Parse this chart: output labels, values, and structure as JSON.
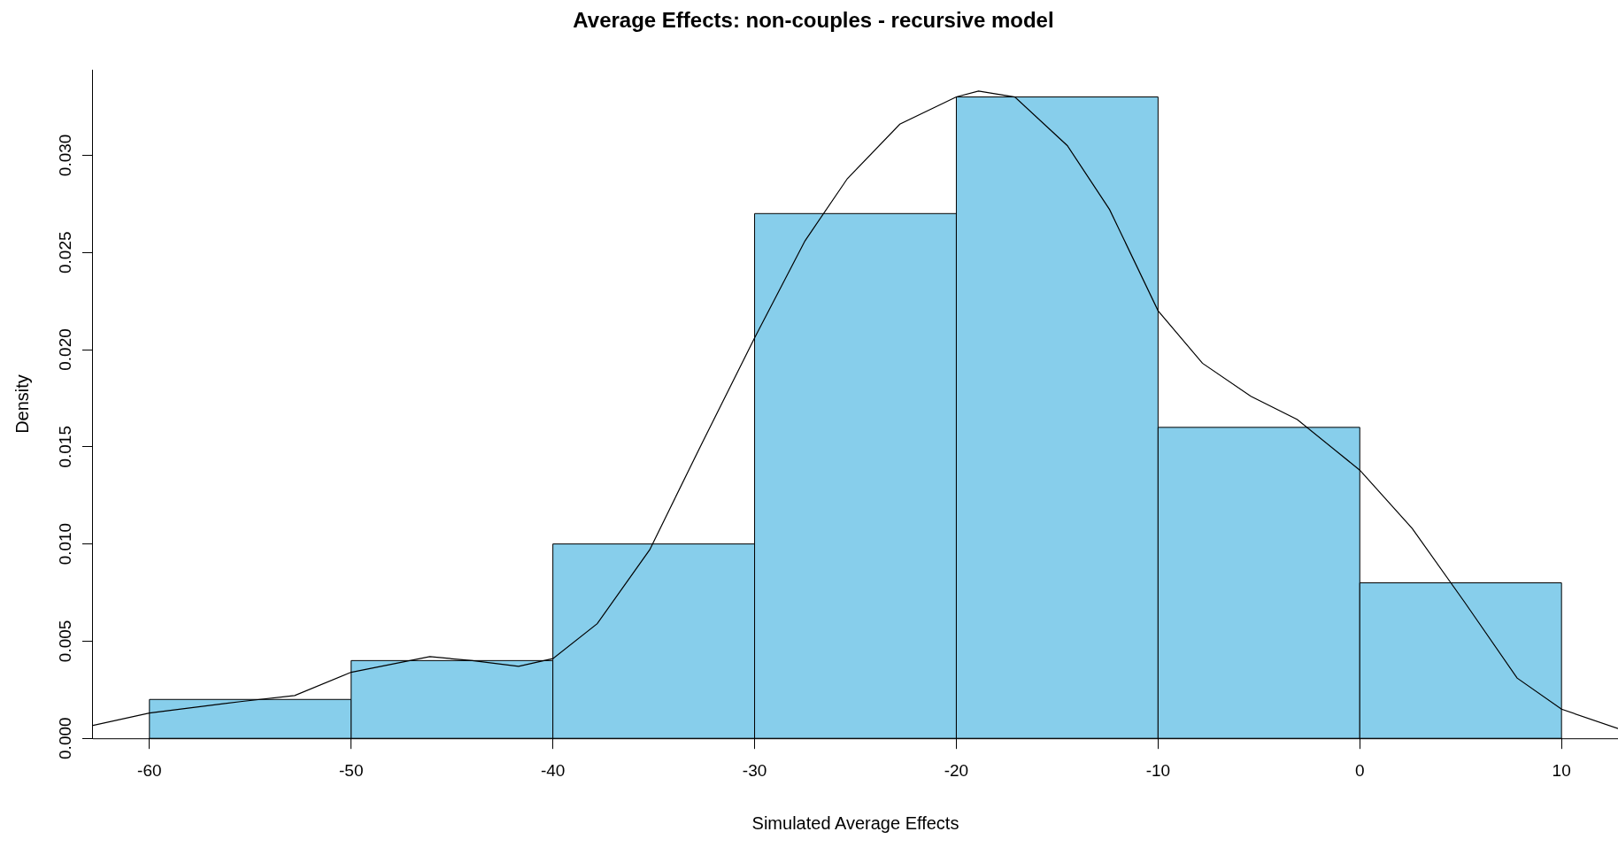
{
  "chart_data": {
    "type": "histogram",
    "title": "Average Effects: non-couples - recursive model",
    "xlabel": "Simulated Average Effects",
    "ylabel": "Density",
    "bins": [
      -60,
      -50,
      -40,
      -30,
      -20,
      -10,
      0,
      10
    ],
    "values": [
      0.002,
      0.004,
      0.01,
      0.027,
      0.033,
      0.016,
      0.008
    ],
    "color": "#87ceeb",
    "series": [
      {
        "type": "line",
        "color": "#000000",
        "x": [
          -62.8,
          -60,
          -55.4,
          -52.8,
          -50,
          -46.1,
          -44,
          -41.7,
          -40,
          -37.8,
          -35.2,
          -32.6,
          -30,
          -27.5,
          -25.4,
          -22.8,
          -20,
          -18.9,
          -17.1,
          -14.5,
          -12.4,
          -10,
          -7.8,
          -5.4,
          -3.1,
          0,
          2.6,
          5.2,
          7.8,
          10,
          12.8
        ],
        "values": [
          0.00066,
          0.0013,
          0.0019,
          0.0022,
          0.0034,
          0.0042,
          0.004,
          0.0037,
          0.0041,
          0.0059,
          0.0097,
          0.0152,
          0.0206,
          0.0256,
          0.0288,
          0.0316,
          0.033,
          0.0333,
          0.033,
          0.0305,
          0.0272,
          0.022,
          0.0193,
          0.0176,
          0.0164,
          0.0138,
          0.0108,
          0.007,
          0.0031,
          0.0015,
          0.0005
        ]
      }
    ],
    "xlim": [
      -62.8,
      12.8
    ],
    "ylim": [
      0,
      0.0344
    ],
    "xticks": [
      -60,
      -50,
      -40,
      -30,
      -20,
      -10,
      0,
      10
    ],
    "yticks": [
      {
        "value": 0,
        "label": "0.000"
      },
      {
        "value": 0.005,
        "label": "0.005"
      },
      {
        "value": 0.01,
        "label": "0.010"
      },
      {
        "value": 0.015,
        "label": "0.015"
      },
      {
        "value": 0.02,
        "label": "0.020"
      },
      {
        "value": 0.025,
        "label": "0.025"
      },
      {
        "value": 0.03,
        "label": "0.030"
      }
    ],
    "marker": "none",
    "grid": false,
    "legend": false
  }
}
